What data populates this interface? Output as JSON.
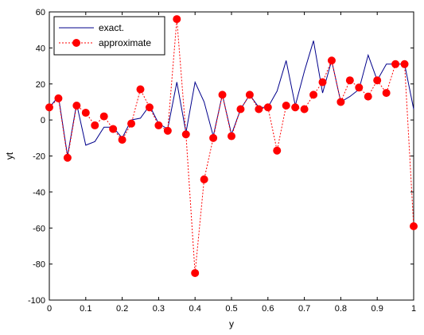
{
  "chart_data": {
    "type": "line",
    "xlabel": "y",
    "ylabel": "yt",
    "xlim": [
      0,
      1
    ],
    "ylim": [
      -100,
      60
    ],
    "xticks": [
      0,
      0.1,
      0.2,
      0.3,
      0.4,
      0.5,
      0.6,
      0.7,
      0.8,
      0.9,
      1
    ],
    "xtick_labels": [
      "0",
      "0.1",
      "0.2",
      "0.3",
      "0.4",
      "0.5",
      "0.6",
      "0.7",
      "0.8",
      "0.9",
      "1"
    ],
    "yticks": [
      -100,
      -80,
      -60,
      -40,
      -20,
      0,
      20,
      40,
      60
    ],
    "ytick_labels": [
      "-100",
      "-80",
      "-60",
      "-40",
      "-20",
      "0",
      "20",
      "40",
      "60"
    ],
    "grid": false,
    "legend_position": "top-left",
    "series": [
      {
        "name": "exact.",
        "color": "#00008b",
        "line_style": "solid",
        "marker": "none",
        "x": [
          0,
          0.025,
          0.05,
          0.075,
          0.1,
          0.125,
          0.15,
          0.175,
          0.2,
          0.225,
          0.25,
          0.275,
          0.3,
          0.325,
          0.35,
          0.375,
          0.4,
          0.425,
          0.45,
          0.475,
          0.5,
          0.525,
          0.55,
          0.575,
          0.6,
          0.625,
          0.65,
          0.675,
          0.7,
          0.725,
          0.75,
          0.775,
          0.8,
          0.825,
          0.85,
          0.875,
          0.9,
          0.925,
          0.95,
          0.975,
          1
        ],
        "y": [
          7,
          13,
          -20,
          9,
          -14,
          -12,
          -4,
          -4,
          -10,
          0,
          1,
          8,
          -2,
          -5,
          21,
          -7,
          21,
          10,
          -9,
          14,
          -8,
          6,
          14,
          7,
          7,
          16,
          33,
          8,
          27,
          44,
          15,
          33,
          10,
          13,
          17,
          36,
          22,
          31,
          31,
          31,
          6
        ]
      },
      {
        "name": "approximate",
        "color": "#ff0000",
        "line_style": "dotted",
        "marker": "circle",
        "x": [
          0,
          0.025,
          0.05,
          0.075,
          0.1,
          0.125,
          0.15,
          0.175,
          0.2,
          0.225,
          0.25,
          0.275,
          0.3,
          0.325,
          0.35,
          0.375,
          0.4,
          0.425,
          0.45,
          0.475,
          0.5,
          0.525,
          0.55,
          0.575,
          0.6,
          0.625,
          0.65,
          0.675,
          0.7,
          0.725,
          0.75,
          0.775,
          0.8,
          0.825,
          0.85,
          0.875,
          0.9,
          0.925,
          0.95,
          0.975,
          1
        ],
        "y": [
          7,
          12,
          -21,
          8,
          4,
          -3,
          2,
          -5,
          -11,
          -2,
          17,
          7,
          -3,
          -6,
          56,
          -8,
          -85,
          -33,
          -10,
          14,
          -9,
          6,
          14,
          6,
          7,
          -17,
          8,
          7,
          6,
          14,
          21,
          33,
          10,
          22,
          18,
          13,
          22,
          15,
          31,
          31,
          -59
        ]
      }
    ]
  }
}
